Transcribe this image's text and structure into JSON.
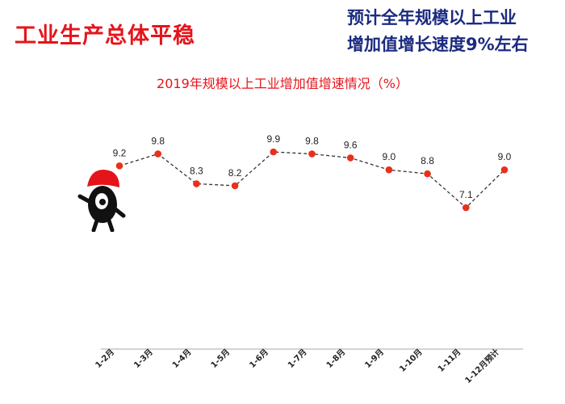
{
  "header": {
    "headline": "工业生产总体平稳",
    "note_line1": "预计全年规模以上工业",
    "note_line2": "增加值增长速度9%左右"
  },
  "chart_data": {
    "type": "line",
    "title": "2019年规模以上工业增加值增速情况（%）",
    "categories": [
      "1-2月",
      "1-3月",
      "1-4月",
      "1-5月",
      "1-6月",
      "1-7月",
      "1-8月",
      "1-9月",
      "1-10月",
      "1-11月",
      "1-12月预计"
    ],
    "values": [
      9.2,
      9.8,
      8.3,
      8.2,
      9.9,
      9.8,
      9.6,
      9.0,
      8.8,
      7.1,
      9.0
    ],
    "value_labels": [
      "9.2",
      "9.8",
      "8.3",
      "8.2",
      "9.9",
      "9.8",
      "9.6",
      "9.0",
      "8.8",
      "7.1",
      "9.0"
    ],
    "line_style": "dashed",
    "grid": false,
    "legend": "none",
    "colors": {
      "marker": "#e8301a",
      "line": "#333333",
      "title": "#e5141b",
      "note": "#1b2a80"
    }
  },
  "mascot": {
    "icon": "mascot-with-red-cap-icon"
  }
}
